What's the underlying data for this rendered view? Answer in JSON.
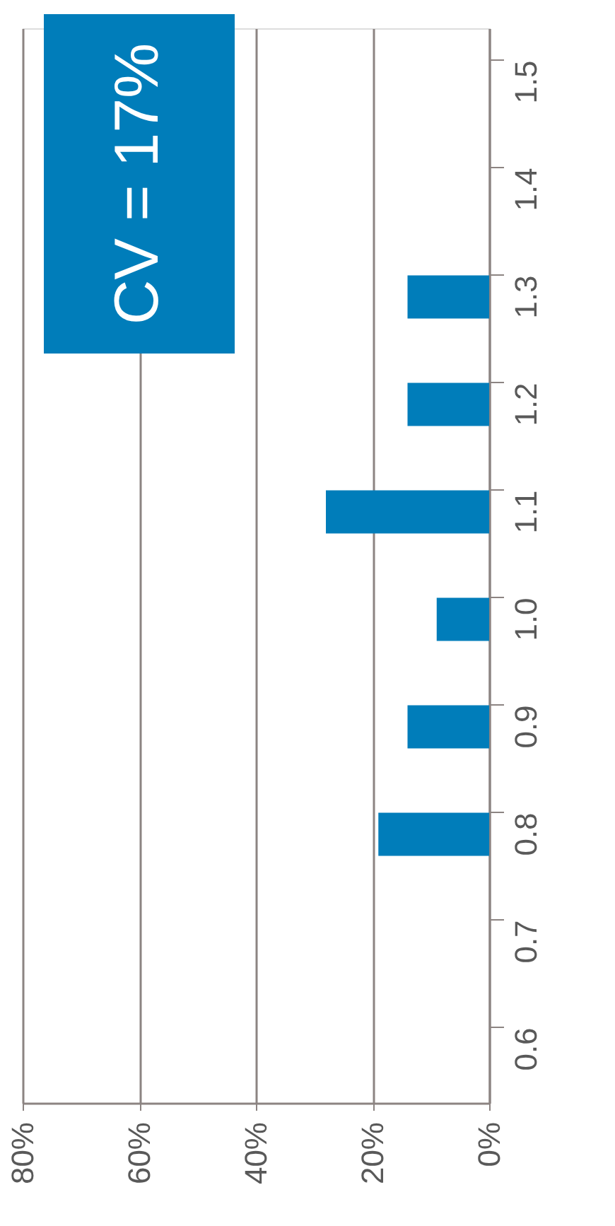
{
  "chart_data": {
    "type": "bar",
    "orientation": "horizontal",
    "categories": [
      "1.5",
      "1.4",
      "1.3",
      "1.2",
      "1.1",
      "1.0",
      "0.9",
      "0.8",
      "0.7",
      "0.6"
    ],
    "values": [
      null,
      null,
      14,
      14,
      28,
      9,
      14,
      19,
      null,
      null
    ],
    "color": "#007dba",
    "xlim": [
      80,
      0
    ],
    "xticks": [
      {
        "value": 80,
        "label": "80%"
      },
      {
        "value": 60,
        "label": "60%"
      },
      {
        "value": 40,
        "label": "40%"
      },
      {
        "value": 20,
        "label": "20%"
      },
      {
        "value": 0,
        "label": "0%"
      }
    ],
    "grid": "x",
    "annotations": [
      "CV = 17%"
    ]
  }
}
